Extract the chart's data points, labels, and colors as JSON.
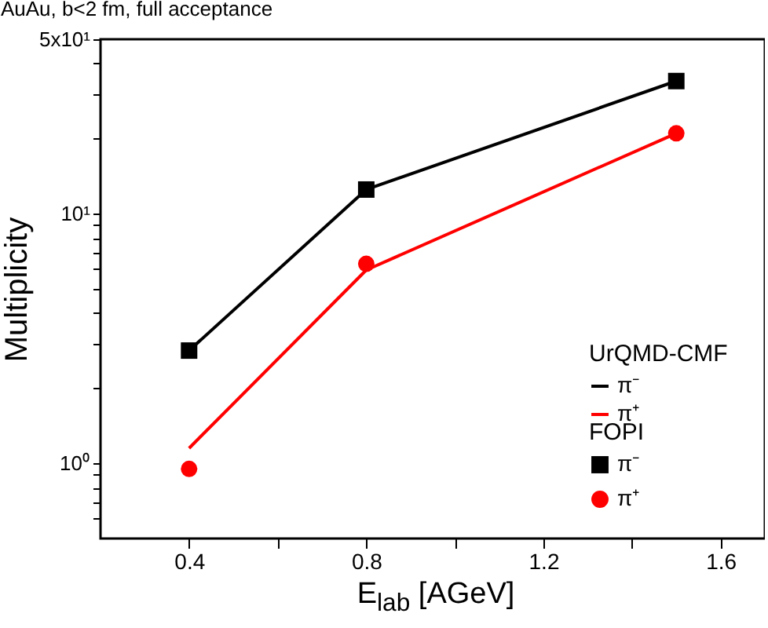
{
  "chart_data": {
    "type": "line",
    "title": "AuAu, b<2 fm, full acceptance",
    "xlabel": "E$_{lab}$ [AGeV]",
    "ylabel": "Multiplicity",
    "legend_title": [
      "UrQMD-CMF",
      "FOPI"
    ],
    "legend": "bottom right",
    "log": "y",
    "grid": false,
    "x": [
      0.4,
      0.8,
      1.5
    ],
    "xlim": [
      0.2,
      1.7
    ],
    "xticks": [
      0.4,
      {
        "value": 0.6,
        "label": null
      },
      0.8,
      {
        "value": 1.0,
        "label": null
      },
      1.2,
      {
        "value": 1.4,
        "label": null
      },
      1.6
    ],
    "ylim": [
      0.5,
      50
    ],
    "yticks": [
      {
        "value": 0.6,
        "label": null
      },
      {
        "value": 0.7,
        "label": null
      },
      {
        "value": 0.8,
        "label": null
      },
      {
        "value": 0.9,
        "label": null
      },
      {
        "value": 1,
        "label": "10⁰"
      },
      {
        "value": 2,
        "label": null
      },
      {
        "value": 3,
        "label": null
      },
      {
        "value": 4,
        "label": null
      },
      {
        "value": 5,
        "label": null
      },
      {
        "value": 6,
        "label": null
      },
      {
        "value": 7,
        "label": null
      },
      {
        "value": 8,
        "label": null
      },
      {
        "value": 9,
        "label": null
      },
      {
        "value": 10,
        "label": "10¹"
      },
      {
        "value": 20,
        "label": null
      },
      {
        "value": 30,
        "label": null
      },
      {
        "value": 40,
        "label": null
      },
      {
        "value": 50,
        "label": "5x10¹"
      }
    ],
    "series": [
      {
        "name": "π⁻",
        "color": "#000000",
        "marker": "none",
        "line_style": "solid",
        "values": [
          2.83,
          12.5,
          34
        ]
      },
      {
        "name": "π⁺",
        "color": "#ff0000",
        "marker": "none",
        "line_style": "solid",
        "values": [
          1.15,
          5.95,
          21
        ]
      },
      {
        "name": "π⁻",
        "type": "scatter",
        "color": "#000000",
        "marker": "square",
        "values": [
          2.83,
          12.5,
          34
        ]
      },
      {
        "name": "π⁺",
        "type": "scatter",
        "color": "#ff0000",
        "marker": "circle",
        "values": [
          0.95,
          6.3,
          21
        ],
        "errors": [
          null,
          0.4,
          null
        ]
      }
    ]
  }
}
